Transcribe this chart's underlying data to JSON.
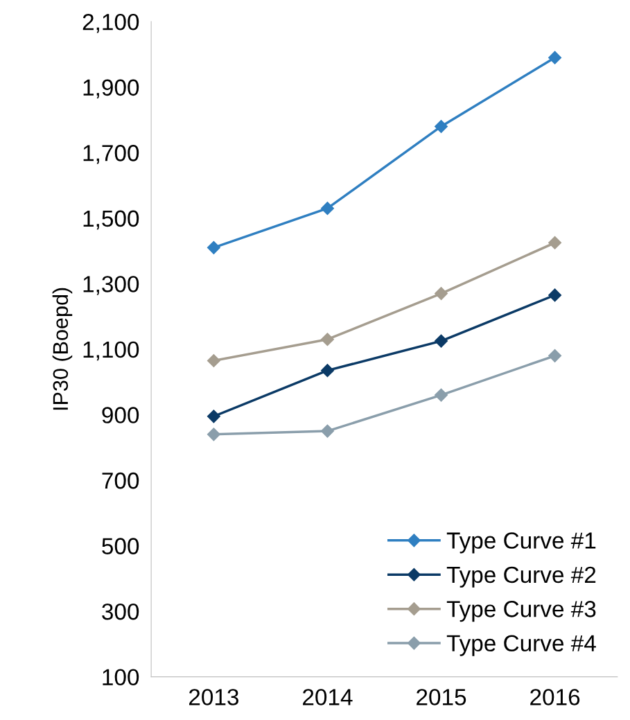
{
  "chart_data": {
    "type": "line",
    "ylabel": "IP30 (Boepd)",
    "categories": [
      "2013",
      "2014",
      "2015",
      "2016"
    ],
    "series": [
      {
        "name": "Type Curve #1",
        "color": "#2f7fc1",
        "values": [
          1410,
          1530,
          1780,
          1990
        ]
      },
      {
        "name": "Type Curve #2",
        "color": "#0b3a66",
        "values": [
          895,
          1035,
          1125,
          1265
        ]
      },
      {
        "name": "Type Curve #3",
        "color": "#a59d8f",
        "values": [
          1065,
          1130,
          1270,
          1425
        ]
      },
      {
        "name": "Type Curve #4",
        "color": "#8a9eab",
        "values": [
          840,
          850,
          960,
          1080
        ]
      }
    ],
    "ylim": [
      100,
      2100
    ],
    "yticks": [
      {
        "value": 100,
        "label": "100"
      },
      {
        "value": 300,
        "label": "300"
      },
      {
        "value": 500,
        "label": "500"
      },
      {
        "value": 700,
        "label": "700"
      },
      {
        "value": 900,
        "label": "900"
      },
      {
        "value": 1100,
        "label": "1,100"
      },
      {
        "value": 1300,
        "label": "1,300"
      },
      {
        "value": 1500,
        "label": "1,500"
      },
      {
        "value": 1700,
        "label": "1,700"
      },
      {
        "value": 1900,
        "label": "1,900"
      },
      {
        "value": 2100,
        "label": "2,100"
      }
    ],
    "grid": false,
    "legend": "bottom right",
    "marker": "diamond",
    "line_style": "solid"
  }
}
